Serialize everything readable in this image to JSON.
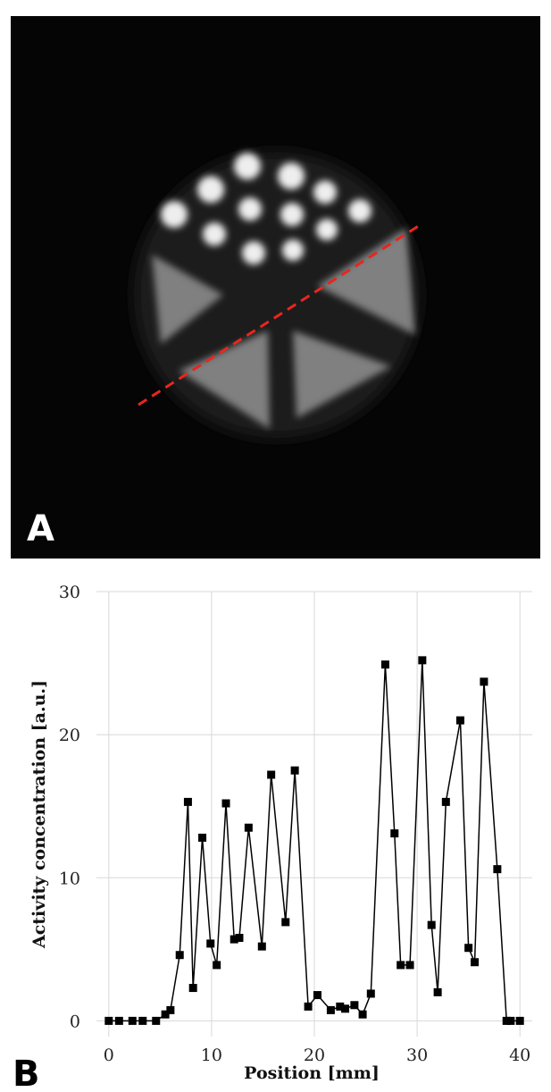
{
  "image_panel": {
    "label": "A"
  },
  "chart_data": {
    "type": "line",
    "panel_label": "B",
    "x_label": "Position [mm]",
    "y_label": "Activity concentration [a.u.]",
    "xlim": [
      -1.2,
      41.2
    ],
    "ylim": [
      -1.1,
      30
    ],
    "xticks": [
      0,
      10,
      20,
      30,
      40
    ],
    "yticks": [
      0,
      10,
      20,
      30
    ],
    "grid": true,
    "series": [
      {
        "color": "#000000",
        "x": [
          0,
          1,
          2.3,
          3.3,
          4.6,
          5.5,
          6.0,
          6.9,
          7.7,
          8.2,
          9.1,
          9.9,
          10.5,
          11.4,
          12.2,
          12.7,
          13.6,
          14.9,
          15.8,
          17.2,
          18.1,
          19.4,
          20.3,
          21.6,
          22.5,
          23.0,
          23.9,
          24.7,
          25.5,
          26.9,
          27.8,
          28.4,
          29.3,
          30.5,
          31.4,
          32.0,
          32.8,
          34.2,
          35.0,
          35.6,
          36.5,
          37.8,
          38.7,
          39.1,
          40
        ],
        "values": [
          0,
          0,
          0,
          0,
          0,
          0.45,
          0.75,
          4.6,
          15.3,
          2.3,
          12.8,
          5.4,
          3.9,
          15.2,
          5.7,
          5.8,
          13.5,
          5.2,
          17.2,
          6.9,
          17.5,
          1.0,
          1.8,
          0.75,
          1.0,
          0.85,
          1.1,
          0.45,
          1.9,
          24.9,
          13.1,
          3.9,
          3.9,
          25.2,
          6.7,
          2.0,
          15.3,
          21.0,
          5.1,
          4.1,
          23.7,
          10.6,
          0,
          0,
          0
        ]
      }
    ]
  }
}
